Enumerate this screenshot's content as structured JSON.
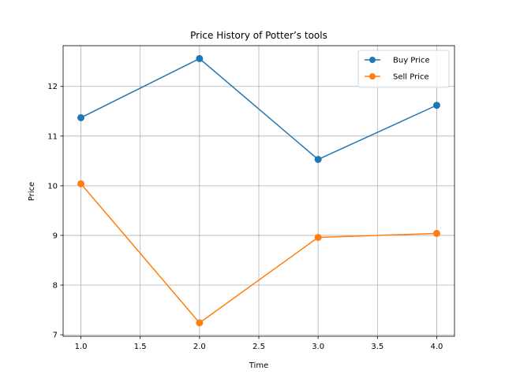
{
  "chart_data": {
    "type": "line",
    "title": "Price History of Potter’s tools",
    "xlabel": "Time",
    "ylabel": "Price",
    "xlim": [
      0.85,
      4.15
    ],
    "ylim": [
      6.97,
      12.82
    ],
    "xticks": [
      1.0,
      1.5,
      2.0,
      2.5,
      3.0,
      3.5,
      4.0
    ],
    "xtick_labels": [
      "1.0",
      "1.5",
      "2.0",
      "2.5",
      "3.0",
      "3.5",
      "4.0"
    ],
    "yticks": [
      7,
      8,
      9,
      10,
      11,
      12
    ],
    "ytick_labels": [
      "7",
      "8",
      "9",
      "10",
      "11",
      "12"
    ],
    "grid": true,
    "legend_position": "top-right",
    "x": [
      1,
      2,
      3,
      4
    ],
    "series": [
      {
        "name": "Buy Price",
        "color": "#1f77b4",
        "values": [
          11.37,
          12.56,
          10.53,
          11.62
        ]
      },
      {
        "name": "Sell Price",
        "color": "#ff7f0e",
        "values": [
          10.04,
          7.24,
          8.96,
          9.04
        ]
      }
    ]
  }
}
